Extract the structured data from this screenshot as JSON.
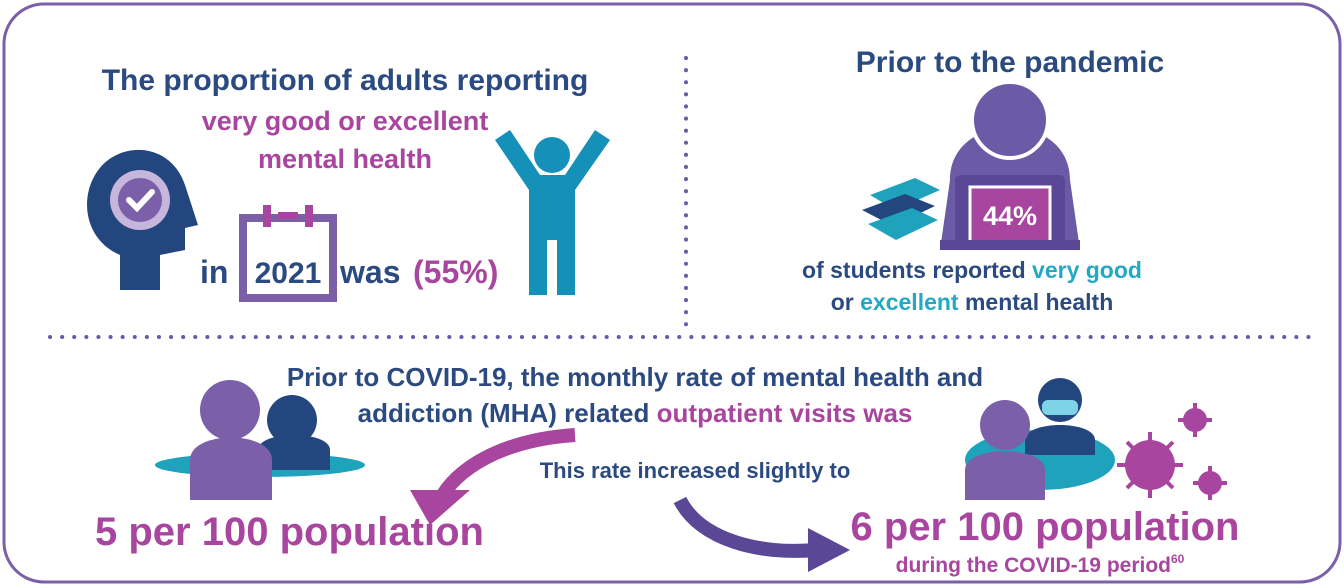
{
  "adults": {
    "title": "The proportion of adults reporting",
    "highlight": [
      "very good or excellent",
      "mental health"
    ],
    "in": "in",
    "year": "2021",
    "was": "was",
    "value": "(55%)"
  },
  "students": {
    "title": "Prior to the pandemic",
    "value": "44%",
    "line1": [
      "of students reported",
      "very good"
    ],
    "line2": [
      "or",
      "excellent",
      "mental health"
    ]
  },
  "outpatient": {
    "intro": [
      "Prior to COVID-19, the monthly rate of mental health and",
      "addiction (MHA) related",
      "outpatient visits was"
    ],
    "before": "5 per 100 population",
    "increase": "This rate increased slightly to",
    "after": "6 per 100 population",
    "period": "during the COVID-19 period",
    "footnote": "60"
  }
}
